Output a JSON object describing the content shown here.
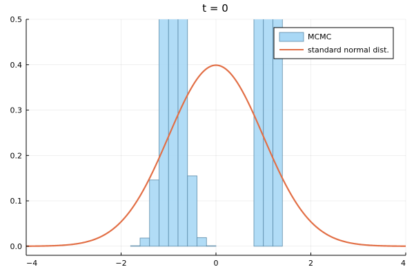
{
  "chart_data": {
    "type": "bar",
    "title": "t = 0",
    "xlabel": "",
    "ylabel": "",
    "xlim": [
      -4,
      4
    ],
    "ylim": [
      -0.02,
      0.5
    ],
    "xticks": [
      -4,
      -2,
      0,
      2,
      4
    ],
    "xtick_labels": [
      "−4",
      "−2",
      "0",
      "2",
      "4"
    ],
    "yticks": [
      0.0,
      0.1,
      0.2,
      0.3,
      0.4,
      0.5
    ],
    "ytick_labels": [
      "0.0",
      "0.1",
      "0.2",
      "0.3",
      "0.4",
      "0.5"
    ],
    "grid": true,
    "legend_position": "top-right",
    "histogram": {
      "name": "MCMC",
      "color": "#a9d8f5",
      "edge_color": "#5a8aa8",
      "bin_edges": [
        -1.8,
        -1.6,
        -1.4,
        -1.2,
        -1.0,
        -0.8,
        -0.6,
        -0.4,
        -0.2,
        0.0,
        0.2,
        0.4,
        0.6,
        0.8,
        1.0,
        1.2,
        1.4
      ],
      "values": [
        0.001,
        0.018,
        0.146,
        0.92,
        1.34,
        0.86,
        0.155,
        0.019,
        0.001,
        0.0,
        0.0,
        0.0,
        0.0,
        0.86,
        1.34,
        0.92
      ]
    },
    "curve": {
      "name": "standard normal dist.",
      "color": "#e26f46",
      "function": "standard normal pdf"
    }
  }
}
